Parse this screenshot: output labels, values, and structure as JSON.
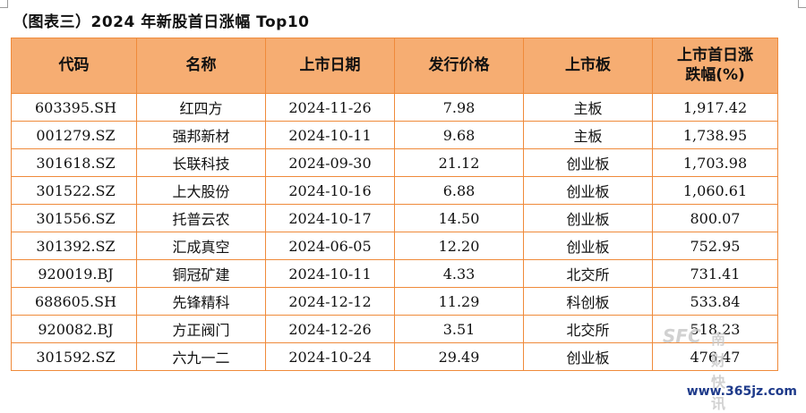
{
  "title": "（图表三）2024 年新股首日涨幅 Top10",
  "headers": {
    "code": "代码",
    "name": "名称",
    "date": "上市日期",
    "price": "发行价格",
    "board": "上市板",
    "change_line1": "上市首日涨",
    "change_line2": "跌幅(%)"
  },
  "rows": [
    {
      "code": "603395.SH",
      "name": "红四方",
      "date": "2024-11-26",
      "price": "7.98",
      "board": "主板",
      "change": "1,917.42"
    },
    {
      "code": "001279.SZ",
      "name": "强邦新材",
      "date": "2024-10-11",
      "price": "9.68",
      "board": "主板",
      "change": "1,738.95"
    },
    {
      "code": "301618.SZ",
      "name": "长联科技",
      "date": "2024-09-30",
      "price": "21.12",
      "board": "创业板",
      "change": "1,703.98"
    },
    {
      "code": "301522.SZ",
      "name": "上大股份",
      "date": "2024-10-16",
      "price": "6.88",
      "board": "创业板",
      "change": "1,060.61"
    },
    {
      "code": "301556.SZ",
      "name": "托普云农",
      "date": "2024-10-17",
      "price": "14.50",
      "board": "创业板",
      "change": "800.07"
    },
    {
      "code": "301392.SZ",
      "name": "汇成真空",
      "date": "2024-06-05",
      "price": "12.20",
      "board": "创业板",
      "change": "752.95"
    },
    {
      "code": "920019.BJ",
      "name": "铜冠矿建",
      "date": "2024-10-11",
      "price": "4.33",
      "board": "北交所",
      "change": "731.41"
    },
    {
      "code": "688605.SH",
      "name": "先锋精科",
      "date": "2024-12-12",
      "price": "11.29",
      "board": "科创板",
      "change": "533.84"
    },
    {
      "code": "920082.BJ",
      "name": "方正阀门",
      "date": "2024-12-26",
      "price": "3.51",
      "board": "北交所",
      "change": "518.23"
    },
    {
      "code": "301592.SZ",
      "name": "六九一二",
      "date": "2024-10-24",
      "price": "29.49",
      "board": "创业板",
      "change": "476.47"
    }
  ],
  "watermark": {
    "logo": "SFC",
    "name": "南财快讯"
  },
  "footer_url": "www.365jz.com",
  "colors": {
    "header_bg": "#f6ad72",
    "border": "#ef8a3a",
    "url": "#1e3a8a"
  }
}
